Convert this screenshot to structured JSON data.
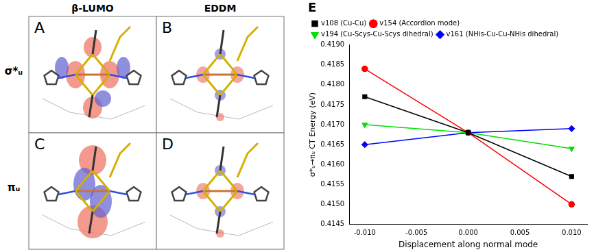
{
  "panels": {
    "column_headers": [
      "β-LUMO",
      "EDDM"
    ],
    "row_labels": [
      "σ*ᵤ",
      "πᵤ"
    ],
    "letters": [
      "A",
      "B",
      "C",
      "D"
    ]
  },
  "chart_data": {
    "type": "line",
    "title": "E",
    "x_label": "Displacement along normal mode",
    "y_label": "σ*ᵤ→πᵤ CT Energy (eV)",
    "x": [
      -0.01,
      0,
      0.01
    ],
    "series": [
      {
        "name": "v108 (Cu-Cu)",
        "color": "#000000",
        "marker": "square",
        "values": [
          0.4177,
          0.4168,
          0.4157
        ]
      },
      {
        "name": "v154 (Accordion mode)",
        "color": "#ff0000",
        "marker": "circle",
        "values": [
          0.4184,
          0.4168,
          0.415
        ]
      },
      {
        "name": "v194 (Cu-Scys-Cu-Scys dihedral)",
        "color": "#00e000",
        "marker": "triangle-down",
        "values": [
          0.417,
          0.4168,
          0.4164
        ]
      },
      {
        "name": "v161 (NHis-Cu-Cu-NHis dihedral)",
        "color": "#0000ff",
        "marker": "diamond",
        "values": [
          0.4165,
          0.4168,
          0.4169
        ]
      }
    ],
    "xlim": [
      -0.0115,
      0.0115
    ],
    "xticks": [
      {
        "value": -0.01,
        "label": "-0.010"
      },
      {
        "value": -0.005,
        "label": "-0.005"
      },
      {
        "value": 0,
        "label": "0.000"
      },
      {
        "value": 0.005,
        "label": "0.005"
      },
      {
        "value": 0.01,
        "label": "0.010"
      }
    ],
    "ylim": [
      0.4145,
      0.419
    ],
    "yticks": [
      {
        "value": 0.4145,
        "label": "0.4145"
      },
      {
        "value": 0.415,
        "label": "0.4150"
      },
      {
        "value": 0.4155,
        "label": "0.4155"
      },
      {
        "value": 0.416,
        "label": "0.4160"
      },
      {
        "value": 0.4165,
        "label": "0.4165"
      },
      {
        "value": 0.417,
        "label": "0.4170"
      },
      {
        "value": 0.4175,
        "label": "0.4175"
      },
      {
        "value": 0.418,
        "label": "0.4180"
      },
      {
        "value": 0.4185,
        "label": "0.4185"
      },
      {
        "value": 0.419,
        "label": "0.4190"
      }
    ],
    "grid": false,
    "legend": "top"
  }
}
